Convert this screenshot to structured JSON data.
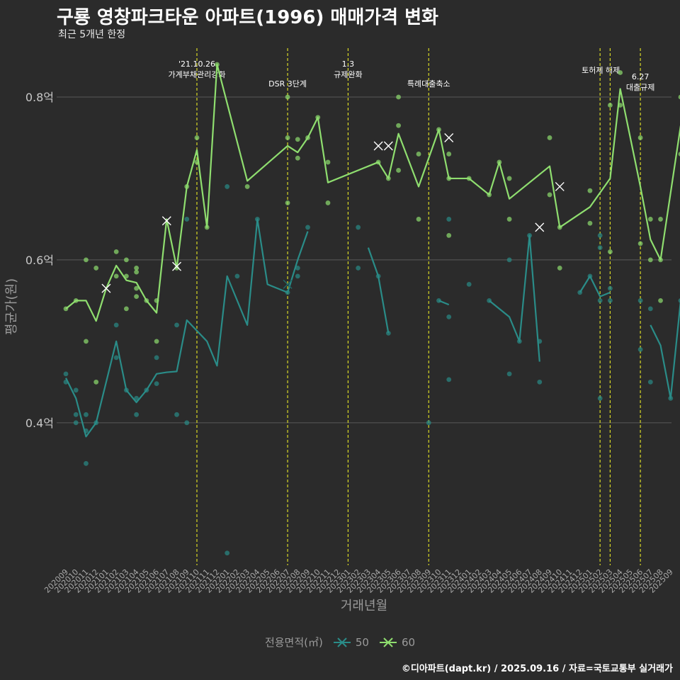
{
  "title": "구룡 영창파크타운 아파트(1996) 매매가격 변화",
  "subtitle": "최근 5개년 한정",
  "caption": "©디아파트(dapt.kr) / 2025.09.16 / 자료=국토교통부 실거래가",
  "colors": {
    "background": "#2b2b2b",
    "s50": "#2a8c88",
    "s60": "#8fde6f",
    "event": "#d9d925",
    "grid": "#5a5a5a",
    "axis_text": "#9a9a9a"
  },
  "chart_data": {
    "type": "line",
    "title": "구룡 영창파크타운 아파트(1996) 매매가격 변화",
    "subtitle": "최근 5개년 한정",
    "xlabel": "거래년월",
    "ylabel": "평균가(원)",
    "ylim": [
      0.225,
      0.86
    ],
    "yticks": [
      0.4,
      0.6,
      0.8
    ],
    "ytick_labels": [
      "0.4억",
      "0.6억",
      "0.8억"
    ],
    "grid": true,
    "legend_title": "전용면적(㎡)",
    "legend_position": "bottom",
    "categories": [
      "202009",
      "202010",
      "202011",
      "202012",
      "202101",
      "202102",
      "202103",
      "202104",
      "202105",
      "202106",
      "202107",
      "202108",
      "202109",
      "202110",
      "202111",
      "202112",
      "202201",
      "202202",
      "202203",
      "202204",
      "202205",
      "202206",
      "202207",
      "202208",
      "202209",
      "202210",
      "202211",
      "202212",
      "202301",
      "202302",
      "202303",
      "202304",
      "202305",
      "202306",
      "202307",
      "202308",
      "202309",
      "202310",
      "202311",
      "202312",
      "202401",
      "202402",
      "202403",
      "202404",
      "202405",
      "202406",
      "202407",
      "202408",
      "202409",
      "202410",
      "202411",
      "202412",
      "202501",
      "202502",
      "202503",
      "202504",
      "202505",
      "202506",
      "202507",
      "202508",
      "202509"
    ],
    "events": [
      {
        "x": "202110",
        "label": "'21.10.26\n가계부채관리강화"
      },
      {
        "x": "202207",
        "label": "DSR 3단계"
      },
      {
        "x": "202301",
        "label": "1.3\n규제완화"
      },
      {
        "x": "202309",
        "label": "특례대출축소"
      },
      {
        "x": "202502",
        "label": "토허제 해제"
      },
      {
        "x": "202503",
        "label": ""
      },
      {
        "x": "202506",
        "label": "6.27\n대출규제"
      }
    ],
    "series": [
      {
        "name": "50",
        "color": "#2a8c88",
        "line": [
          [
            "202009",
            0.455
          ],
          [
            "202010",
            0.43
          ],
          [
            "202011",
            0.383
          ],
          [
            "202012",
            0.4
          ],
          [
            "202102",
            0.5
          ],
          [
            "202103",
            0.44
          ],
          [
            "202104",
            0.425
          ],
          [
            "202105",
            0.44
          ],
          [
            "202106",
            0.46
          ],
          [
            "202107",
            0.462
          ],
          [
            "202108",
            0.463
          ],
          [
            "202109",
            0.526
          ],
          [
            "202111",
            0.5
          ],
          [
            "202112",
            0.47
          ],
          [
            "202201",
            0.58
          ],
          [
            "202203",
            0.52
          ],
          [
            "202204",
            0.65
          ],
          [
            "202205",
            0.57
          ],
          [
            "202207",
            0.56
          ],
          [
            "202208",
            0.6
          ],
          [
            "202209",
            0.635
          ],
          null,
          [
            "202303",
            0.615
          ],
          [
            "202304",
            0.58
          ],
          [
            "202305",
            0.51
          ],
          null,
          [
            "202310",
            0.55
          ],
          [
            "202311",
            0.545
          ],
          null,
          [
            "202403",
            0.55
          ],
          [
            "202405",
            0.53
          ],
          [
            "202406",
            0.5
          ],
          [
            "202407",
            0.63
          ],
          [
            "202408",
            0.475
          ],
          null,
          [
            "202412",
            0.56
          ],
          [
            "202501",
            0.58
          ],
          [
            "202502",
            0.555
          ],
          [
            "202503",
            0.56
          ],
          null,
          [
            "202507",
            0.52
          ],
          [
            "202508",
            0.495
          ],
          [
            "202509",
            0.43
          ],
          [
            "202510",
            0.55
          ]
        ],
        "points": [
          [
            "202009",
            0.46
          ],
          [
            "202009",
            0.45
          ],
          [
            "202010",
            0.44
          ],
          [
            "202010",
            0.41
          ],
          [
            "202010",
            0.4
          ],
          [
            "202011",
            0.41
          ],
          [
            "202011",
            0.39
          ],
          [
            "202011",
            0.35
          ],
          [
            "202012",
            0.4
          ],
          [
            "202102",
            0.52
          ],
          [
            "202102",
            0.48
          ],
          [
            "202103",
            0.44
          ],
          [
            "202104",
            0.43
          ],
          [
            "202104",
            0.41
          ],
          [
            "202105",
            0.44
          ],
          [
            "202106",
            0.448
          ],
          [
            "202106",
            0.48
          ],
          [
            "202108",
            0.52
          ],
          [
            "202108",
            0.41
          ],
          [
            "202109",
            0.4
          ],
          [
            "202109",
            0.65
          ],
          [
            "202201",
            0.69
          ],
          [
            "202201",
            0.24
          ],
          [
            "202202",
            0.58
          ],
          [
            "202204",
            0.65
          ],
          [
            "202207",
            0.56
          ],
          [
            "202208",
            0.59
          ],
          [
            "202208",
            0.58
          ],
          [
            "202209",
            0.64
          ],
          [
            "202302",
            0.64
          ],
          [
            "202302",
            0.59
          ],
          [
            "202304",
            0.58
          ],
          [
            "202305",
            0.51
          ],
          [
            "202309",
            0.4
          ],
          [
            "202310",
            0.55
          ],
          [
            "202311",
            0.53
          ],
          [
            "202311",
            0.65
          ],
          [
            "202311",
            0.453
          ],
          [
            "202401",
            0.57
          ],
          [
            "202403",
            0.55
          ],
          [
            "202405",
            0.46
          ],
          [
            "202405",
            0.6
          ],
          [
            "202406",
            0.5
          ],
          [
            "202407",
            0.63
          ],
          [
            "202408",
            0.45
          ],
          [
            "202408",
            0.5
          ],
          [
            "202412",
            0.56
          ],
          [
            "202501",
            0.58
          ],
          [
            "202502",
            0.43
          ],
          [
            "202502",
            0.55
          ],
          [
            "202502",
            0.615
          ],
          [
            "202502",
            0.63
          ],
          [
            "202503",
            0.55
          ],
          [
            "202503",
            0.565
          ],
          [
            "202506",
            0.55
          ],
          [
            "202506",
            0.49
          ],
          [
            "202507",
            0.54
          ],
          [
            "202507",
            0.45
          ],
          [
            "202509",
            0.43
          ],
          [
            "202510",
            0.55
          ]
        ],
        "crosses": [
          [
            "202207",
            0.57
          ]
        ]
      },
      {
        "name": "60",
        "color": "#8fde6f",
        "line": [
          [
            "202009",
            0.54
          ],
          [
            "202010",
            0.55
          ],
          [
            "202011",
            0.55
          ],
          [
            "202012",
            0.525
          ],
          [
            "202101",
            0.565
          ],
          [
            "202102",
            0.593
          ],
          [
            "202103",
            0.575
          ],
          [
            "202104",
            0.572
          ],
          [
            "202105",
            0.55
          ],
          [
            "202106",
            0.535
          ],
          [
            "202107",
            0.65
          ],
          [
            "202108",
            0.59
          ],
          [
            "202109",
            0.69
          ],
          [
            "202110",
            0.735
          ],
          [
            "202111",
            0.64
          ],
          [
            "202112",
            0.84
          ],
          [
            "202203",
            0.697
          ],
          [
            "202207",
            0.74
          ],
          [
            "202208",
            0.732
          ],
          [
            "202209",
            0.75
          ],
          [
            "202210",
            0.775
          ],
          [
            "202211",
            0.695
          ],
          [
            "202304",
            0.72
          ],
          [
            "202305",
            0.7
          ],
          [
            "202306",
            0.755
          ],
          [
            "202308",
            0.69
          ],
          [
            "202310",
            0.76
          ],
          [
            "202311",
            0.7
          ],
          [
            "202401",
            0.7
          ],
          [
            "202403",
            0.68
          ],
          [
            "202404",
            0.72
          ],
          [
            "202405",
            0.675
          ],
          [
            "202409",
            0.715
          ],
          [
            "202410",
            0.64
          ],
          [
            "202501",
            0.665
          ],
          [
            "202503",
            0.7
          ],
          [
            "202504",
            0.81
          ],
          [
            "202506",
            0.69
          ],
          [
            "202507",
            0.625
          ],
          [
            "202508",
            0.6
          ],
          [
            "202510",
            0.765
          ]
        ],
        "points": [
          [
            "202009",
            0.54
          ],
          [
            "202010",
            0.55
          ],
          [
            "202011",
            0.6
          ],
          [
            "202011",
            0.5
          ],
          [
            "202012",
            0.59
          ],
          [
            "202012",
            0.45
          ],
          [
            "202102",
            0.61
          ],
          [
            "202102",
            0.58
          ],
          [
            "202103",
            0.6
          ],
          [
            "202103",
            0.58
          ],
          [
            "202103",
            0.54
          ],
          [
            "202104",
            0.59
          ],
          [
            "202104",
            0.585
          ],
          [
            "202104",
            0.565
          ],
          [
            "202104",
            0.555
          ],
          [
            "202105",
            0.55
          ],
          [
            "202106",
            0.55
          ],
          [
            "202106",
            0.5
          ],
          [
            "202108",
            0.59
          ],
          [
            "202109",
            0.69
          ],
          [
            "202110",
            0.75
          ],
          [
            "202110",
            0.72
          ],
          [
            "202111",
            0.64
          ],
          [
            "202112",
            0.84
          ],
          [
            "202203",
            0.69
          ],
          [
            "202207",
            0.8
          ],
          [
            "202207",
            0.75
          ],
          [
            "202207",
            0.67
          ],
          [
            "202208",
            0.748
          ],
          [
            "202208",
            0.725
          ],
          [
            "202209",
            0.75
          ],
          [
            "202210",
            0.775
          ],
          [
            "202211",
            0.72
          ],
          [
            "202211",
            0.67
          ],
          [
            "202304",
            0.72
          ],
          [
            "202305",
            0.7
          ],
          [
            "202306",
            0.8
          ],
          [
            "202306",
            0.765
          ],
          [
            "202306",
            0.71
          ],
          [
            "202308",
            0.73
          ],
          [
            "202308",
            0.65
          ],
          [
            "202310",
            0.76
          ],
          [
            "202311",
            0.73
          ],
          [
            "202311",
            0.7
          ],
          [
            "202311",
            0.63
          ],
          [
            "202401",
            0.7
          ],
          [
            "202403",
            0.68
          ],
          [
            "202404",
            0.72
          ],
          [
            "202405",
            0.7
          ],
          [
            "202405",
            0.65
          ],
          [
            "202409",
            0.75
          ],
          [
            "202409",
            0.68
          ],
          [
            "202410",
            0.64
          ],
          [
            "202410",
            0.59
          ],
          [
            "202501",
            0.685
          ],
          [
            "202501",
            0.645
          ],
          [
            "202503",
            0.79
          ],
          [
            "202503",
            0.61
          ],
          [
            "202504",
            0.83
          ],
          [
            "202504",
            0.79
          ],
          [
            "202506",
            0.75
          ],
          [
            "202506",
            0.62
          ],
          [
            "202507",
            0.65
          ],
          [
            "202507",
            0.6
          ],
          [
            "202508",
            0.65
          ],
          [
            "202508",
            0.6
          ],
          [
            "202508",
            0.55
          ],
          [
            "202510",
            0.8
          ],
          [
            "202510",
            0.73
          ]
        ],
        "crosses": [
          [
            "202107",
            0.648
          ],
          [
            "202108",
            0.592
          ],
          [
            "202101",
            0.565
          ],
          [
            "202304",
            0.74
          ],
          [
            "202305",
            0.74
          ],
          [
            "202311",
            0.75
          ],
          [
            "202408",
            0.64
          ],
          [
            "202410",
            0.69
          ]
        ]
      }
    ]
  }
}
